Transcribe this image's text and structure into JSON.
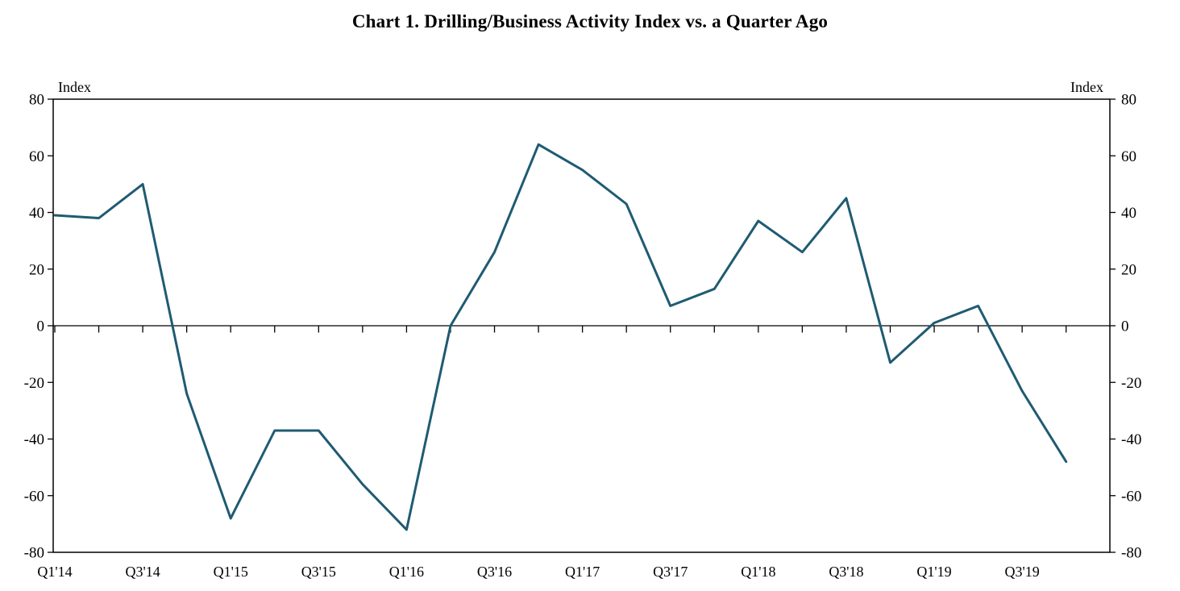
{
  "title": "Chart 1. Drilling/Business Activity Index vs. a Quarter Ago",
  "chart_data": {
    "type": "line",
    "title": "Chart 1. Drilling/Business Activity Index vs. a Quarter Ago",
    "x": [
      "Q1'14",
      "Q2'14",
      "Q3'14",
      "Q4'14",
      "Q1'15",
      "Q2'15",
      "Q3'15",
      "Q4'15",
      "Q1'16",
      "Q2'16",
      "Q3'16",
      "Q4'16",
      "Q1'17",
      "Q2'17",
      "Q3'17",
      "Q4'17",
      "Q1'18",
      "Q2'18",
      "Q3'18",
      "Q4'18",
      "Q1'19",
      "Q2'19",
      "Q3'19",
      "Q4'19"
    ],
    "series": [
      {
        "name": "Drilling/Business Activity Index vs. a Quarter Ago",
        "values": [
          39,
          38,
          50,
          -24,
          -68,
          -37,
          -37,
          -56,
          -72,
          0,
          26,
          64,
          55,
          43,
          7,
          13,
          37,
          26,
          45,
          -13,
          1,
          7,
          -23,
          -48
        ]
      }
    ],
    "x_tick_labels_shown": [
      "Q1'14",
      "Q3'14",
      "Q1'15",
      "Q3'15",
      "Q1'16",
      "Q3'16",
      "Q1'17",
      "Q3'17",
      "Q1'18",
      "Q3'18",
      "Q1'19",
      "Q3'19"
    ],
    "ylabel_left": "Index",
    "ylabel_right": "Index",
    "ylim": [
      -80,
      80
    ],
    "ytick_step": 20,
    "baseline": 0,
    "grid": false,
    "legend": "none",
    "line_color": "#1F5B72",
    "axis_color": "#000000",
    "background": "#FFFFFF"
  }
}
